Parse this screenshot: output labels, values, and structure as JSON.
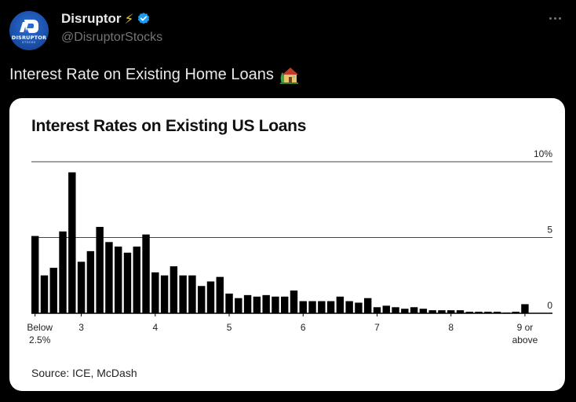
{
  "tweet": {
    "display_name": "Disruptor",
    "handle": "@DisruptorStocks",
    "avatar_text": "DISRUPTOR",
    "avatar_subtext": "STOCKS",
    "text": "Interest Rate on Existing Home Loans",
    "emoji_icon": "house-with-garden-icon"
  },
  "colors": {
    "background": "#000000",
    "card": "#ffffff",
    "bars": "#000000",
    "verified": "#1d9bf0",
    "bolt": "#f4c20d"
  },
  "chart_data": {
    "type": "bar",
    "title": "Interest Rates on Existing US Loans",
    "source": "Source: ICE, McDash",
    "ylim": [
      0,
      10
    ],
    "yticks": [
      {
        "value": 10,
        "label": "10%"
      },
      {
        "value": 5,
        "label": "5"
      },
      {
        "value": 0,
        "label": "0"
      }
    ],
    "xlabels": [
      {
        "bar": 0,
        "lines": [
          "Below",
          "2.5%"
        ]
      },
      {
        "bar": 5,
        "lines": [
          "3"
        ]
      },
      {
        "bar": 13,
        "lines": [
          "4"
        ]
      },
      {
        "bar": 21,
        "lines": [
          "5"
        ]
      },
      {
        "bar": 29,
        "lines": [
          "6"
        ]
      },
      {
        "bar": 37,
        "lines": [
          "7"
        ]
      },
      {
        "bar": 45,
        "lines": [
          "8"
        ]
      },
      {
        "bar": 53,
        "lines": [
          "9 or",
          "above"
        ]
      }
    ],
    "values": [
      5.1,
      2.5,
      3.0,
      5.4,
      9.3,
      3.4,
      4.1,
      5.7,
      4.7,
      4.4,
      4.0,
      4.4,
      5.2,
      2.7,
      2.5,
      3.1,
      2.5,
      2.5,
      1.8,
      2.1,
      2.4,
      1.3,
      1.0,
      1.2,
      1.1,
      1.2,
      1.1,
      1.1,
      1.5,
      0.8,
      0.8,
      0.8,
      0.8,
      1.1,
      0.8,
      0.7,
      1.0,
      0.4,
      0.5,
      0.4,
      0.3,
      0.4,
      0.3,
      0.2,
      0.2,
      0.2,
      0.2,
      0.1,
      0.1,
      0.1,
      0.1,
      0.05,
      0.1,
      0.6
    ],
    "grid": true
  }
}
